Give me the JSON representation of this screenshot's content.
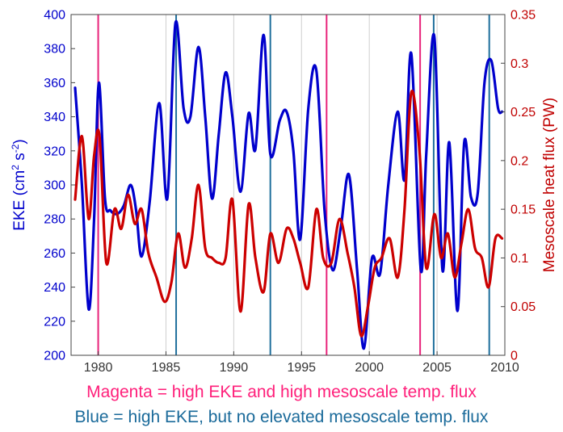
{
  "chart_data": {
    "type": "line",
    "title": "",
    "xlabel": "",
    "ylabel_left": "EKE",
    "ylabel_left_unit": "cm2 s-2",
    "ylabel_right": "Mesoscale heat flux (PW)",
    "xlim": [
      1978,
      2010
    ],
    "ylim_left": [
      200,
      400
    ],
    "ylim_right": [
      0,
      0.35
    ],
    "x_ticks": [
      "1980",
      "1985",
      "1990",
      "1995",
      "2000",
      "2005",
      "2010"
    ],
    "y_left_ticks": [
      "200",
      "220",
      "240",
      "260",
      "280",
      "300",
      "320",
      "340",
      "360",
      "380",
      "400"
    ],
    "y_right_ticks": [
      "0",
      "0.05",
      "0.1",
      "0.15",
      "0.2",
      "0.25",
      "0.3",
      "0.35"
    ],
    "grid": "vertical",
    "colors": {
      "eke": "#0000cc",
      "heat_flux": "#cc0000",
      "magenta_lines": "#e8237a",
      "blue_lines": "#1f6f9c",
      "grid": "#cfcfcf"
    },
    "series": [
      {
        "name": "EKE",
        "axis": "left",
        "x": [
          1978.3,
          1978.8,
          1979.3,
          1979.7,
          1980.05,
          1980.5,
          1980.9,
          1981.4,
          1981.9,
          1982.4,
          1982.8,
          1983.2,
          1983.8,
          1984.5,
          1985.1,
          1985.7,
          1986.3,
          1986.8,
          1987.4,
          1987.9,
          1988.4,
          1988.9,
          1989.4,
          1989.9,
          1990.5,
          1991.1,
          1991.6,
          1992.2,
          1992.7,
          1993.4,
          1993.9,
          1994.4,
          1994.9,
          1995.5,
          1996.1,
          1996.7,
          1997.3,
          1997.9,
          1998.5,
          1999.1,
          1999.6,
          2000.2,
          2000.8,
          2001.4,
          2002.1,
          2002.6,
          2003.1,
          2003.8,
          2004.2,
          2004.8,
          2005.4,
          2005.9,
          2006.5,
          2007.0,
          2007.5,
          2008.0,
          2008.5,
          2009.0,
          2009.5,
          2009.8
        ],
        "values": [
          357,
          300,
          227,
          280,
          360,
          292,
          285,
          283,
          288,
          300,
          285,
          258,
          290,
          348,
          292,
          395,
          345,
          340,
          381,
          340,
          292,
          330,
          366,
          340,
          296,
          342,
          321,
          388,
          318,
          338,
          343,
          320,
          268,
          345,
          367,
          285,
          250,
          275,
          306,
          250,
          204,
          257,
          248,
          300,
          343,
          303,
          377,
          250,
          318,
          387,
          250,
          325,
          226,
          325,
          293,
          295,
          360,
          373,
          345,
          343
        ]
      },
      {
        "name": "Mesoscale heat flux",
        "axis": "right",
        "x": [
          1978.3,
          1978.8,
          1979.3,
          1979.7,
          1980.1,
          1980.6,
          1981.2,
          1981.7,
          1982.2,
          1982.7,
          1983.2,
          1983.7,
          1984.3,
          1984.9,
          1985.4,
          1985.9,
          1986.4,
          1986.9,
          1987.4,
          1987.9,
          1988.4,
          1988.9,
          1989.4,
          1989.9,
          1990.5,
          1991.1,
          1991.6,
          1992.2,
          1992.7,
          1993.3,
          1993.9,
          1994.4,
          1994.9,
          1995.5,
          1996.1,
          1996.6,
          1997.2,
          1997.8,
          1998.4,
          1998.9,
          1999.4,
          1999.9,
          2000.4,
          2000.9,
          2001.5,
          2002.1,
          2002.6,
          2003.1,
          2003.7,
          2004.2,
          2004.8,
          2005.3,
          2005.8,
          2006.3,
          2006.8,
          2007.3,
          2007.8,
          2008.3,
          2008.8,
          2009.3,
          2009.8
        ],
        "values": [
          0.16,
          0.225,
          0.14,
          0.205,
          0.225,
          0.095,
          0.15,
          0.13,
          0.165,
          0.135,
          0.15,
          0.105,
          0.08,
          0.055,
          0.075,
          0.125,
          0.09,
          0.12,
          0.175,
          0.11,
          0.1,
          0.095,
          0.1,
          0.16,
          0.045,
          0.155,
          0.1,
          0.065,
          0.125,
          0.095,
          0.13,
          0.12,
          0.095,
          0.07,
          0.15,
          0.1,
          0.095,
          0.14,
          0.105,
          0.07,
          0.02,
          0.05,
          0.09,
          0.1,
          0.12,
          0.08,
          0.15,
          0.27,
          0.21,
          0.09,
          0.145,
          0.1,
          0.125,
          0.08,
          0.115,
          0.15,
          0.11,
          0.1,
          0.07,
          0.12,
          0.12
        ]
      }
    ],
    "markers": {
      "magenta": [
        1980.0,
        1996.85,
        2003.75
      ],
      "blue": [
        1985.75,
        1992.7,
        2004.75,
        2008.85
      ]
    }
  },
  "captions": {
    "magenta": "Magenta = high EKE and high mesoscale temp. flux",
    "blue": "Blue = high EKE, but no elevated mesoscale temp. flux"
  }
}
